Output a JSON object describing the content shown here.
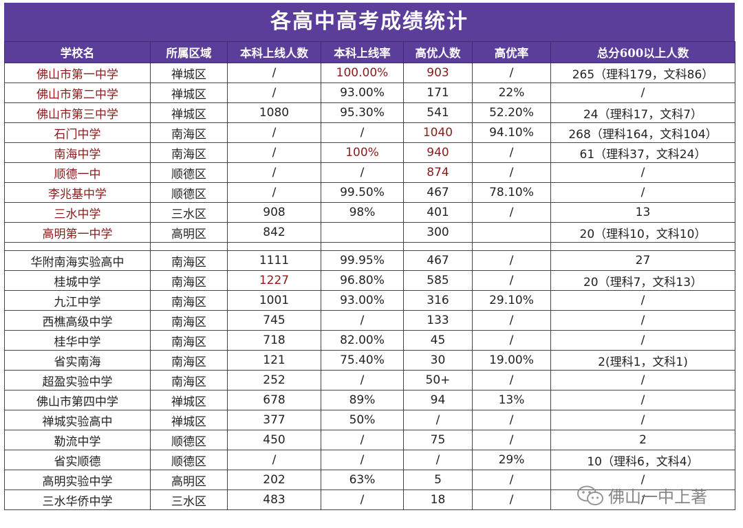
{
  "title": "各高中高考成绩统计",
  "headers": [
    "学校名",
    "所属区域",
    "本科上线人数",
    "本科上线率",
    "高优人数",
    "高优率",
    "总分600以上人数"
  ],
  "group1": [
    {
      "cells": [
        "佛山市第一中学",
        "禅城区",
        "/",
        "100.00%",
        "903",
        "/",
        "265（理科179，文科86）"
      ],
      "red": [
        0,
        3,
        4
      ]
    },
    {
      "cells": [
        "佛山市第二中学",
        "禅城区",
        "/",
        "93.00%",
        "171",
        "22%",
        "/"
      ],
      "red": [
        0
      ]
    },
    {
      "cells": [
        "佛山市第三中学",
        "禅城区",
        "1080",
        "95.30%",
        "541",
        "52.20%",
        "24（理科17，文科7）"
      ],
      "red": [
        0
      ]
    },
    {
      "cells": [
        "石门中学",
        "南海区",
        "/",
        "/",
        "1040",
        "94.10%",
        "268（理科164，文科104）"
      ],
      "red": [
        0,
        4
      ]
    },
    {
      "cells": [
        "南海中学",
        "南海区",
        "/",
        "100%",
        "940",
        "/",
        "61（理科37，文科24）"
      ],
      "red": [
        0,
        3,
        4
      ]
    },
    {
      "cells": [
        "顺德一中",
        "顺德区",
        "/",
        "/",
        "874",
        "/",
        "/"
      ],
      "red": [
        0,
        4
      ]
    },
    {
      "cells": [
        "李兆基中学",
        "顺德区",
        "/",
        "99.50%",
        "467",
        "78.10%",
        "/"
      ],
      "red": [
        0
      ]
    },
    {
      "cells": [
        "三水中学",
        "三水区",
        "908",
        "98%",
        "401",
        "/",
        "13"
      ],
      "red": [
        0
      ]
    },
    {
      "cells": [
        "高明第一中学",
        "高明区",
        "842",
        "",
        "300",
        "",
        "20（理科10，文科10）"
      ],
      "red": [
        0
      ]
    }
  ],
  "group2": [
    {
      "cells": [
        "华附南海实验高中",
        "南海区",
        "1111",
        "99.95%",
        "467",
        "/",
        "27"
      ],
      "red": []
    },
    {
      "cells": [
        "桂城中学",
        "南海区",
        "1227",
        "96.80%",
        "585",
        "/",
        "20（理科7，文科13）"
      ],
      "red": [
        2
      ]
    },
    {
      "cells": [
        "九江中学",
        "南海区",
        "1001",
        "93.00%",
        "316",
        "29.10%",
        "/"
      ],
      "red": []
    },
    {
      "cells": [
        "西樵高级中学",
        "南海区",
        "745",
        "/",
        "133",
        "/",
        "/"
      ],
      "red": []
    },
    {
      "cells": [
        "桂华中学",
        "南海区",
        "718",
        "82.00%",
        "45",
        "/",
        "/"
      ],
      "red": []
    },
    {
      "cells": [
        "省实南海",
        "南海区",
        "121",
        "75.40%",
        "30",
        "19.00%",
        "2(理科1，文科1)"
      ],
      "red": []
    },
    {
      "cells": [
        "超盈实验中学",
        "南海区",
        "252",
        "/",
        "50+",
        "/",
        "/"
      ],
      "red": []
    },
    {
      "cells": [
        "佛山市第四中学",
        "禅城区",
        "678",
        "89%",
        "94",
        "13%",
        "/"
      ],
      "red": []
    },
    {
      "cells": [
        "禅城实验高中",
        "禅城区",
        "377",
        "50%",
        "/",
        "/",
        "/"
      ],
      "red": []
    },
    {
      "cells": [
        "勒流中学",
        "顺德区",
        "450",
        "/",
        "75",
        "/",
        "2"
      ],
      "red": []
    },
    {
      "cells": [
        "省实顺德",
        "顺德区",
        "/",
        "/",
        "/",
        "29%",
        "10（理科6，文科4）"
      ],
      "red": []
    },
    {
      "cells": [
        "高明实验中学",
        "高明区",
        "202",
        "63%",
        "5",
        "/",
        "/"
      ],
      "red": []
    },
    {
      "cells": [
        "三水华侨中学",
        "三水区",
        "483",
        "/",
        "18",
        "/",
        "/"
      ],
      "red": []
    }
  ],
  "watermark": "佛山一中上著",
  "icons": {
    "watermark_icon": "wechat-icon"
  },
  "colors": {
    "header_bg": "#5b3e9a",
    "highlight_text": "#8b1a1a"
  }
}
